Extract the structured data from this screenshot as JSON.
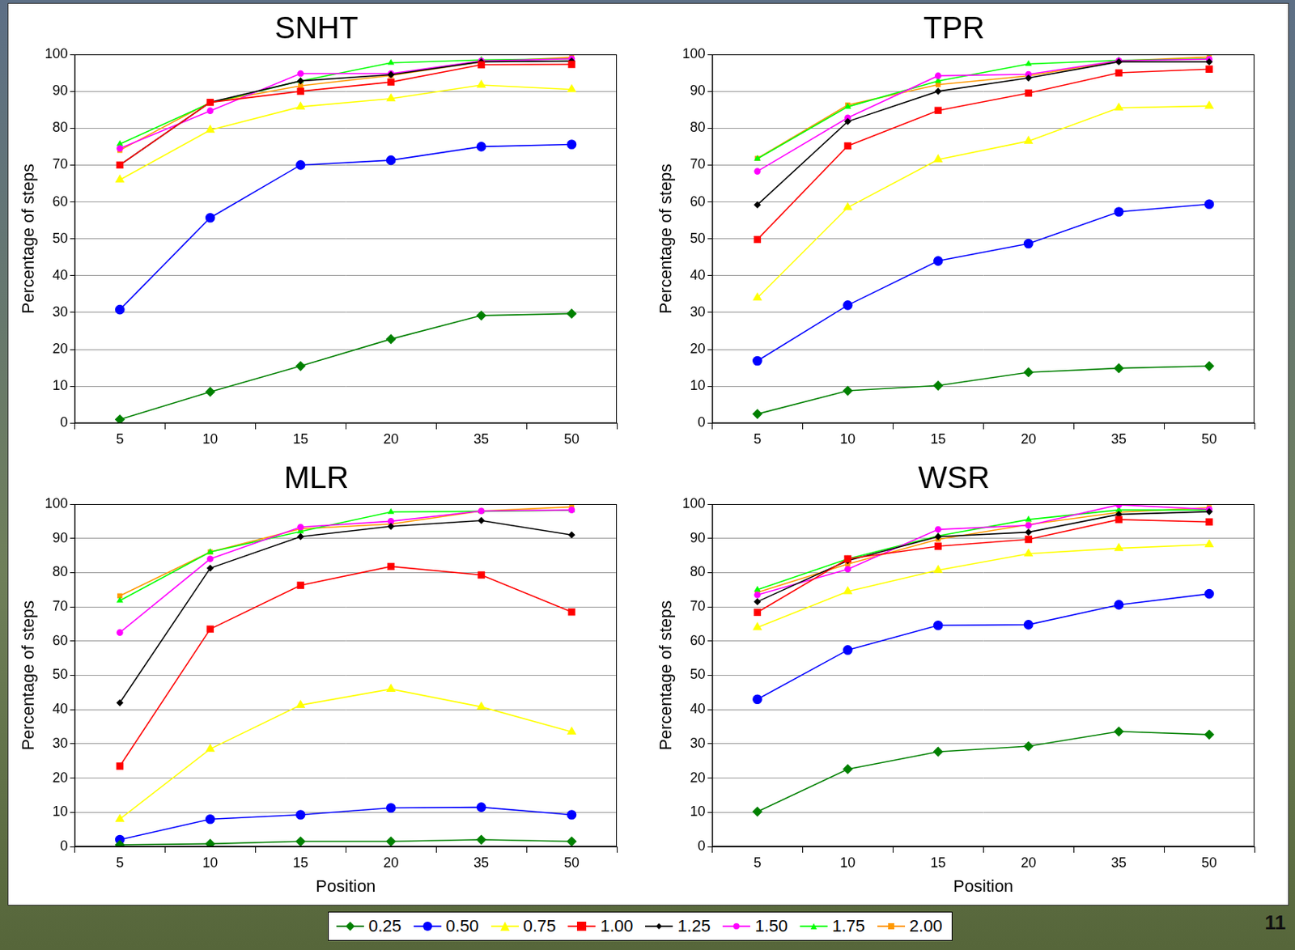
{
  "chart_data": [
    {
      "type": "line",
      "title": "SNHT",
      "y_label": "Percentage of steps",
      "categories": [
        "5",
        "10",
        "15",
        "20",
        "35",
        "50"
      ],
      "ylim": [
        0,
        100
      ],
      "yticks": [
        0,
        10,
        20,
        30,
        40,
        50,
        60,
        70,
        80,
        90,
        100
      ],
      "grid": true,
      "legend": "bottom",
      "series": [
        {
          "name": "0.25",
          "color": "#008000",
          "marker": "diamond",
          "values": [
            1,
            8.5,
            15.5,
            22.8,
            29.2,
            29.7
          ]
        },
        {
          "name": "0.50",
          "color": "#0000ff",
          "marker": "circle",
          "values": [
            30.8,
            55.7,
            70,
            71.3,
            75,
            75.6
          ]
        },
        {
          "name": "0.75",
          "color": "#ffff00",
          "marker": "triangle",
          "values": [
            66,
            79.5,
            85.8,
            88,
            91.7,
            90.5
          ]
        },
        {
          "name": "1.00",
          "color": "#ff0000",
          "marker": "square",
          "values": [
            70,
            87,
            90,
            92.5,
            97.2,
            97.3
          ]
        },
        {
          "name": "1.25",
          "color": "#000000",
          "marker": "diamond",
          "values": [
            70,
            87,
            92.8,
            94.5,
            98,
            98.2
          ]
        },
        {
          "name": "1.50",
          "color": "#ff00ff",
          "marker": "circle",
          "values": [
            74.5,
            84.7,
            94.8,
            94.8,
            98.2,
            98.8
          ]
        },
        {
          "name": "1.75",
          "color": "#00ff00",
          "marker": "triangle",
          "values": [
            75.7,
            86.8,
            92.8,
            97.7,
            98.5,
            98.8
          ]
        },
        {
          "name": "2.00",
          "color": "#ff9900",
          "marker": "square",
          "values": [
            74,
            87,
            91.5,
            94.3,
            98,
            99.2
          ]
        }
      ]
    },
    {
      "type": "line",
      "title": "TPR",
      "y_label": "Percentage of steps",
      "categories": [
        "5",
        "10",
        "15",
        "20",
        "35",
        "50"
      ],
      "ylim": [
        0,
        100
      ],
      "yticks": [
        0,
        10,
        20,
        30,
        40,
        50,
        60,
        70,
        80,
        90,
        100
      ],
      "grid": true,
      "legend": "bottom",
      "series": [
        {
          "name": "0.25",
          "color": "#008000",
          "marker": "diamond",
          "values": [
            2.5,
            8.8,
            10.2,
            13.8,
            14.9,
            15.5
          ]
        },
        {
          "name": "0.50",
          "color": "#0000ff",
          "marker": "circle",
          "values": [
            16.9,
            32,
            44,
            48.7,
            57.3,
            59.4
          ]
        },
        {
          "name": "0.75",
          "color": "#ffff00",
          "marker": "triangle",
          "values": [
            34,
            58.5,
            71.5,
            76.5,
            85.5,
            86
          ]
        },
        {
          "name": "1.00",
          "color": "#ff0000",
          "marker": "square",
          "values": [
            49.8,
            75.2,
            84.8,
            89.5,
            95,
            96
          ]
        },
        {
          "name": "1.25",
          "color": "#000000",
          "marker": "diamond",
          "values": [
            59.2,
            81.8,
            90,
            93.6,
            98,
            98
          ]
        },
        {
          "name": "1.50",
          "color": "#ff00ff",
          "marker": "circle",
          "values": [
            68.3,
            82.8,
            94.2,
            94.6,
            98.3,
            98.7
          ]
        },
        {
          "name": "1.75",
          "color": "#00ff00",
          "marker": "triangle",
          "values": [
            71.7,
            85.8,
            92.8,
            97.4,
            98.4,
            98.8
          ]
        },
        {
          "name": "2.00",
          "color": "#ff9900",
          "marker": "square",
          "values": [
            71.8,
            86.3,
            91.8,
            94.2,
            98.2,
            99.3
          ]
        }
      ]
    },
    {
      "type": "line",
      "title": "MLR",
      "x_label": "Position",
      "y_label": "Percentage of steps",
      "categories": [
        "5",
        "10",
        "15",
        "20",
        "35",
        "50"
      ],
      "ylim": [
        0,
        100
      ],
      "yticks": [
        0,
        10,
        20,
        30,
        40,
        50,
        60,
        70,
        80,
        90,
        100
      ],
      "grid": true,
      "legend": "bottom",
      "series": [
        {
          "name": "0.25",
          "color": "#008000",
          "marker": "diamond",
          "values": [
            0.5,
            0.8,
            1.5,
            1.5,
            2,
            1.5
          ]
        },
        {
          "name": "0.50",
          "color": "#0000ff",
          "marker": "circle",
          "values": [
            2,
            8,
            9.3,
            11.3,
            11.5,
            9.3
          ]
        },
        {
          "name": "0.75",
          "color": "#ffff00",
          "marker": "triangle",
          "values": [
            8,
            28.5,
            41.3,
            46,
            40.8,
            33.5
          ]
        },
        {
          "name": "1.00",
          "color": "#ff0000",
          "marker": "square",
          "values": [
            23.5,
            63.5,
            76.3,
            81.8,
            79.3,
            68.5
          ]
        },
        {
          "name": "1.25",
          "color": "#000000",
          "marker": "diamond",
          "values": [
            42,
            81.3,
            90.5,
            93.5,
            95.2,
            91
          ]
        },
        {
          "name": "1.50",
          "color": "#ff00ff",
          "marker": "circle",
          "values": [
            62.5,
            84,
            93.3,
            95,
            98,
            98.3
          ]
        },
        {
          "name": "1.75",
          "color": "#00ff00",
          "marker": "triangle",
          "values": [
            71.8,
            86,
            92,
            97.7,
            97.9,
            98.2
          ]
        },
        {
          "name": "2.00",
          "color": "#ff9900",
          "marker": "square",
          "values": [
            73.2,
            86,
            92.8,
            94.2,
            98,
            99.2
          ]
        }
      ]
    },
    {
      "type": "line",
      "title": "WSR",
      "x_label": "Position",
      "y_label": "Percentage of steps",
      "categories": [
        "5",
        "10",
        "15",
        "20",
        "35",
        "50"
      ],
      "ylim": [
        0,
        100
      ],
      "yticks": [
        0,
        10,
        20,
        30,
        40,
        50,
        60,
        70,
        80,
        90,
        100
      ],
      "grid": true,
      "legend": "bottom",
      "series": [
        {
          "name": "0.25",
          "color": "#008000",
          "marker": "diamond",
          "values": [
            10.2,
            22.6,
            27.7,
            29.3,
            33.6,
            32.7
          ]
        },
        {
          "name": "0.50",
          "color": "#0000ff",
          "marker": "circle",
          "values": [
            43,
            57.4,
            64.6,
            64.8,
            70.6,
            73.8
          ]
        },
        {
          "name": "0.75",
          "color": "#ffff00",
          "marker": "triangle",
          "values": [
            64,
            74.5,
            80.7,
            85.5,
            87.1,
            88.2
          ]
        },
        {
          "name": "1.00",
          "color": "#ff0000",
          "marker": "square",
          "values": [
            68.4,
            84,
            87.7,
            89.7,
            95.5,
            94.8
          ]
        },
        {
          "name": "1.25",
          "color": "#000000",
          "marker": "diamond",
          "values": [
            71.5,
            83.5,
            90.5,
            91.8,
            97,
            97.8
          ]
        },
        {
          "name": "1.50",
          "color": "#ff00ff",
          "marker": "circle",
          "values": [
            73.5,
            81,
            92.6,
            93.8,
            99.8,
            98.5
          ]
        },
        {
          "name": "1.75",
          "color": "#00ff00",
          "marker": "triangle",
          "values": [
            75,
            84,
            90.7,
            95.5,
            98.3,
            98.3
          ]
        },
        {
          "name": "2.00",
          "color": "#ff9900",
          "marker": "square",
          "values": [
            74.2,
            82.5,
            89.7,
            94,
            97.6,
            99
          ]
        }
      ]
    }
  ],
  "slide_number": "11"
}
